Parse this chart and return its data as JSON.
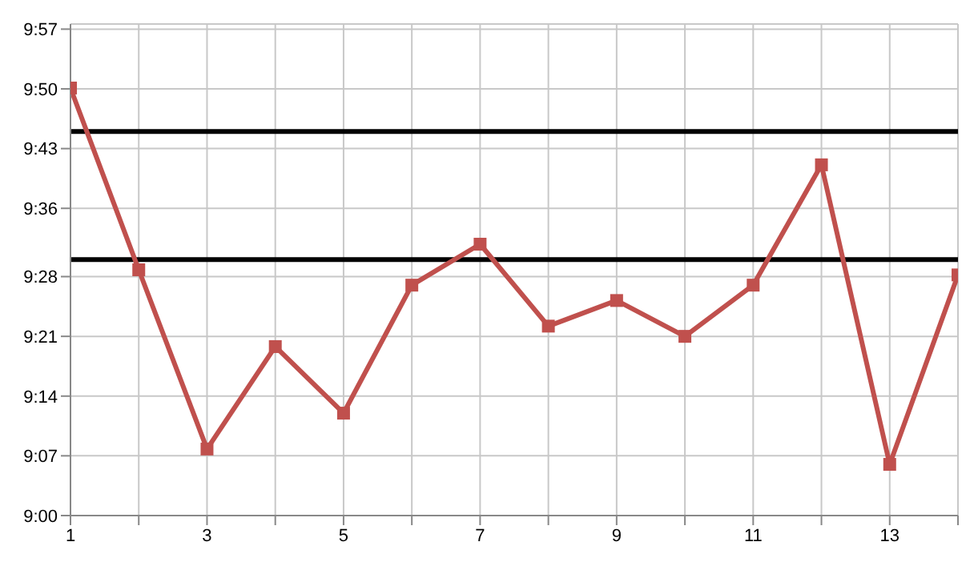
{
  "chart_data": {
    "type": "line",
    "x": [
      1,
      2,
      3,
      4,
      5,
      6,
      7,
      8,
      9,
      10,
      11,
      12,
      13,
      14
    ],
    "series": [
      {
        "color": "#c0504d",
        "values": [
          9.835,
          9.48,
          9.13,
          9.33,
          9.2,
          9.45,
          9.53,
          9.37,
          9.42,
          9.35,
          9.45,
          9.685,
          9.1,
          9.47
        ]
      }
    ],
    "xlim": [
      1,
      14
    ],
    "xticks": [
      1,
      {
        "value": 2,
        "label": null
      },
      3,
      {
        "value": 4,
        "label": null
      },
      5,
      {
        "value": 6,
        "label": null
      },
      7,
      {
        "value": 8,
        "label": null
      },
      9,
      {
        "value": 10,
        "label": null
      },
      11,
      {
        "value": 12,
        "label": null
      },
      13,
      {
        "value": 14,
        "label": null
      }
    ],
    "ylim": [
      9,
      9.96
    ],
    "yticks": [
      {
        "value": 9,
        "label": "9:00"
      },
      {
        "value": 9.1167,
        "label": "9:07"
      },
      {
        "value": 9.2333,
        "label": "9:14"
      },
      {
        "value": 9.35,
        "label": "9:21"
      },
      {
        "value": 9.4667,
        "label": "9:28"
      },
      {
        "value": 9.6,
        "label": "9:36"
      },
      {
        "value": 9.7167,
        "label": "9:43"
      },
      {
        "value": 9.8333,
        "label": "9:50"
      },
      {
        "value": 9.95,
        "label": "9:57"
      }
    ],
    "ref_lines": [
      {
        "axis": "y",
        "value": 9.75,
        "color": "#000000"
      },
      {
        "axis": "y",
        "value": 9.5,
        "color": "#000000"
      }
    ],
    "grid": true,
    "marker": "square",
    "line_style": "solid",
    "legend": false
  }
}
